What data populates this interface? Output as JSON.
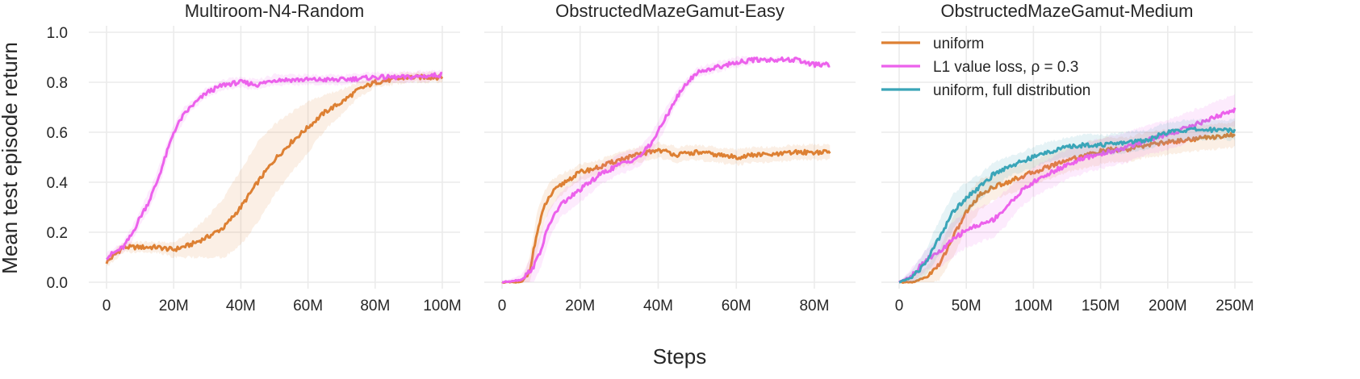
{
  "figure": {
    "ylabel": "Mean test episode return",
    "xlabel": "Steps"
  },
  "chart_data": [
    {
      "type": "line",
      "title": "Multiroom-N4-Random",
      "xlim": [
        0,
        100000000
      ],
      "ylim": [
        0.0,
        1.0
      ],
      "x_ticks": [
        0,
        20000000,
        40000000,
        60000000,
        80000000,
        100000000
      ],
      "x_tick_labels": [
        "0",
        "20M",
        "40M",
        "60M",
        "80M",
        "100M"
      ],
      "y_ticks": [
        0.0,
        0.2,
        0.4,
        0.6,
        0.8,
        1.0
      ],
      "y_tick_labels": [
        "0.0",
        "0.2",
        "0.4",
        "0.6",
        "0.8",
        "1.0"
      ],
      "grid": true,
      "series": [
        {
          "name": "uniform",
          "color": "#dd8033",
          "x": [
            0,
            5000000,
            10000000,
            15000000,
            20000000,
            25000000,
            30000000,
            35000000,
            40000000,
            45000000,
            50000000,
            55000000,
            60000000,
            65000000,
            70000000,
            75000000,
            80000000,
            85000000,
            90000000,
            95000000,
            100000000
          ],
          "y": [
            0.08,
            0.14,
            0.14,
            0.14,
            0.13,
            0.15,
            0.18,
            0.22,
            0.3,
            0.4,
            0.49,
            0.56,
            0.62,
            0.68,
            0.72,
            0.77,
            0.8,
            0.81,
            0.82,
            0.82,
            0.82
          ],
          "band": [
            0.02,
            0.02,
            0.02,
            0.02,
            0.03,
            0.05,
            0.08,
            0.12,
            0.15,
            0.16,
            0.14,
            0.12,
            0.1,
            0.07,
            0.05,
            0.03,
            0.02,
            0.02,
            0.02,
            0.02,
            0.02
          ]
        },
        {
          "name": "L1 value loss, ρ = 0.3",
          "color": "#ec61ec",
          "x": [
            0,
            2500000,
            5000000,
            7500000,
            10000000,
            12500000,
            15000000,
            17500000,
            20000000,
            22500000,
            25000000,
            30000000,
            35000000,
            40000000,
            45000000,
            50000000,
            60000000,
            70000000,
            80000000,
            90000000,
            100000000
          ],
          "y": [
            0.1,
            0.12,
            0.14,
            0.19,
            0.26,
            0.32,
            0.4,
            0.5,
            0.6,
            0.66,
            0.7,
            0.76,
            0.79,
            0.8,
            0.79,
            0.81,
            0.81,
            0.81,
            0.82,
            0.82,
            0.83
          ],
          "band": [
            0.02,
            0.02,
            0.02,
            0.03,
            0.03,
            0.04,
            0.04,
            0.04,
            0.03,
            0.03,
            0.02,
            0.02,
            0.02,
            0.02,
            0.02,
            0.02,
            0.02,
            0.02,
            0.02,
            0.02,
            0.02
          ]
        }
      ]
    },
    {
      "type": "line",
      "title": "ObstructedMazeGamut-Easy",
      "xlim": [
        0,
        86000000
      ],
      "ylim": [
        0.0,
        1.0
      ],
      "x_ticks": [
        0,
        20000000,
        40000000,
        60000000,
        80000000
      ],
      "x_tick_labels": [
        "0",
        "20M",
        "40M",
        "60M",
        "80M"
      ],
      "y_ticks": [
        0.0,
        0.2,
        0.4,
        0.6,
        0.8,
        1.0
      ],
      "y_tick_labels": [
        "",
        "",
        "",
        "",
        "",
        ""
      ],
      "grid": true,
      "series": [
        {
          "name": "uniform",
          "color": "#dd8033",
          "x": [
            0,
            5000000,
            7000000,
            9000000,
            11000000,
            13000000,
            16000000,
            20000000,
            25000000,
            30000000,
            35000000,
            40000000,
            45000000,
            50000000,
            55000000,
            60000000,
            65000000,
            70000000,
            75000000,
            80000000,
            84000000
          ],
          "y": [
            0.0,
            0.0,
            0.04,
            0.2,
            0.31,
            0.36,
            0.4,
            0.44,
            0.46,
            0.49,
            0.51,
            0.53,
            0.51,
            0.52,
            0.51,
            0.5,
            0.51,
            0.51,
            0.52,
            0.52,
            0.52
          ],
          "band": [
            0.0,
            0.01,
            0.05,
            0.08,
            0.06,
            0.05,
            0.04,
            0.03,
            0.03,
            0.03,
            0.03,
            0.03,
            0.03,
            0.03,
            0.03,
            0.03,
            0.03,
            0.03,
            0.03,
            0.03,
            0.03
          ]
        },
        {
          "name": "L1 value loss, ρ = 0.3",
          "color": "#ec61ec",
          "x": [
            0,
            5000000,
            8000000,
            10000000,
            12000000,
            15000000,
            20000000,
            25000000,
            30000000,
            35000000,
            38000000,
            41000000,
            44000000,
            47000000,
            50000000,
            55000000,
            60000000,
            65000000,
            70000000,
            75000000,
            80000000,
            84000000
          ],
          "y": [
            0.0,
            0.01,
            0.06,
            0.13,
            0.23,
            0.31,
            0.37,
            0.43,
            0.47,
            0.5,
            0.55,
            0.63,
            0.72,
            0.79,
            0.84,
            0.86,
            0.88,
            0.89,
            0.89,
            0.89,
            0.87,
            0.87
          ],
          "band": [
            0.0,
            0.02,
            0.06,
            0.07,
            0.06,
            0.05,
            0.05,
            0.04,
            0.04,
            0.04,
            0.04,
            0.04,
            0.03,
            0.02,
            0.02,
            0.02,
            0.02,
            0.01,
            0.01,
            0.01,
            0.01,
            0.01
          ]
        }
      ]
    },
    {
      "type": "line",
      "title": "ObstructedMazeGamut-Medium",
      "xlim": [
        0,
        250000000
      ],
      "ylim": [
        0.0,
        1.0
      ],
      "x_ticks": [
        0,
        50000000,
        100000000,
        150000000,
        200000000,
        250000000
      ],
      "x_tick_labels": [
        "0",
        "50M",
        "100M",
        "150M",
        "200M",
        "250M"
      ],
      "y_ticks": [
        0.0,
        0.2,
        0.4,
        0.6,
        0.8,
        1.0
      ],
      "y_tick_labels": [
        "",
        "",
        "",
        "",
        "",
        ""
      ],
      "grid": true,
      "legend": "top-right",
      "series": [
        {
          "name": "uniform",
          "color": "#dd8033",
          "x": [
            0,
            10000000,
            20000000,
            30000000,
            40000000,
            50000000,
            60000000,
            70000000,
            80000000,
            90000000,
            100000000,
            110000000,
            125000000,
            140000000,
            155000000,
            170000000,
            185000000,
            200000000,
            215000000,
            230000000,
            250000000
          ],
          "y": [
            0.0,
            0.0,
            0.02,
            0.07,
            0.18,
            0.28,
            0.35,
            0.38,
            0.4,
            0.42,
            0.44,
            0.46,
            0.49,
            0.51,
            0.53,
            0.53,
            0.55,
            0.56,
            0.57,
            0.58,
            0.59
          ],
          "band": [
            0.0,
            0.02,
            0.04,
            0.06,
            0.08,
            0.07,
            0.06,
            0.05,
            0.05,
            0.05,
            0.05,
            0.05,
            0.05,
            0.05,
            0.05,
            0.05,
            0.05,
            0.05,
            0.05,
            0.05,
            0.05
          ]
        },
        {
          "name": "L1 value loss, ρ = 0.3",
          "color": "#ec61ec",
          "x": [
            0,
            10000000,
            20000000,
            30000000,
            40000000,
            50000000,
            60000000,
            70000000,
            80000000,
            90000000,
            100000000,
            110000000,
            125000000,
            140000000,
            155000000,
            170000000,
            185000000,
            200000000,
            215000000,
            230000000,
            250000000
          ],
          "y": [
            0.0,
            0.03,
            0.09,
            0.12,
            0.17,
            0.21,
            0.23,
            0.25,
            0.3,
            0.36,
            0.4,
            0.43,
            0.47,
            0.5,
            0.52,
            0.54,
            0.57,
            0.59,
            0.62,
            0.65,
            0.69
          ],
          "band": [
            0.0,
            0.03,
            0.04,
            0.06,
            0.07,
            0.07,
            0.07,
            0.07,
            0.07,
            0.06,
            0.06,
            0.06,
            0.06,
            0.06,
            0.06,
            0.06,
            0.06,
            0.06,
            0.06,
            0.06,
            0.06
          ]
        },
        {
          "name": "uniform, full distribution",
          "color": "#3aa5b8",
          "x": [
            0,
            10000000,
            20000000,
            30000000,
            40000000,
            50000000,
            60000000,
            70000000,
            80000000,
            90000000,
            100000000,
            110000000,
            125000000,
            140000000,
            155000000,
            170000000,
            185000000,
            200000000,
            215000000,
            230000000,
            250000000
          ],
          "y": [
            0.0,
            0.02,
            0.08,
            0.18,
            0.28,
            0.34,
            0.38,
            0.43,
            0.46,
            0.48,
            0.5,
            0.52,
            0.54,
            0.55,
            0.55,
            0.56,
            0.57,
            0.6,
            0.61,
            0.61,
            0.61
          ],
          "band": [
            0.0,
            0.03,
            0.05,
            0.07,
            0.07,
            0.06,
            0.05,
            0.05,
            0.04,
            0.04,
            0.04,
            0.04,
            0.04,
            0.04,
            0.04,
            0.04,
            0.04,
            0.04,
            0.04,
            0.04,
            0.04
          ]
        }
      ]
    }
  ]
}
